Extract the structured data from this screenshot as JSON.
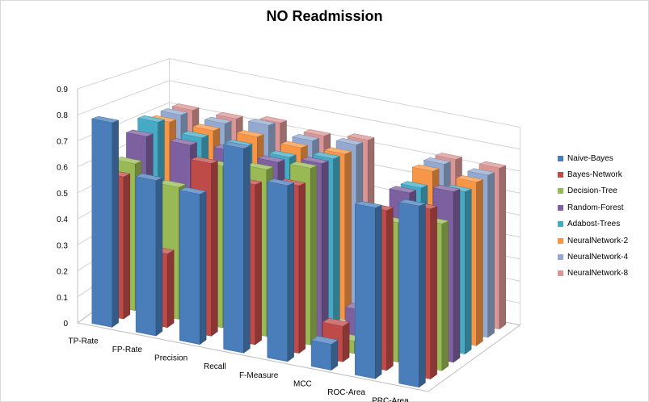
{
  "chart_data": {
    "type": "bar",
    "title": "NO Readmission",
    "categories": [
      "TP-Rate",
      "FP-Rate",
      "Precision",
      "Recall",
      "F-Measure",
      "MCC",
      "ROC-Area",
      "PRC-Area"
    ],
    "ylim": [
      0,
      0.9
    ],
    "yticks": [
      "0",
      "0.1",
      "0.2",
      "0.3",
      "0.4",
      "0.5",
      "0.6",
      "0.7",
      "0.8",
      "0.9"
    ],
    "legend_position": "right",
    "grid": true,
    "series": [
      {
        "name": "Naive-Bayes",
        "color": "#4a7ebb",
        "values": [
          0.79,
          0.6,
          0.58,
          0.79,
          0.68,
          0.1,
          0.66,
          0.7
        ]
      },
      {
        "name": "Bayes-Network",
        "color": "#be4b48",
        "values": [
          0.56,
          0.29,
          0.68,
          0.63,
          0.66,
          0.14,
          0.63,
          0.67
        ]
      },
      {
        "name": "Decision-Tree",
        "color": "#98b954",
        "values": [
          0.59,
          0.53,
          0.65,
          0.67,
          0.71,
          0.05,
          0.56,
          0.59
        ]
      },
      {
        "name": "Random-Forest",
        "color": "#7d60a0",
        "values": [
          0.68,
          0.68,
          0.69,
          0.68,
          0.71,
          0.14,
          0.66,
          0.7
        ]
      },
      {
        "name": "Adabost-Trees",
        "color": "#46aac5",
        "values": [
          0.72,
          0.69,
          0.69,
          0.68,
          0.71,
          0.09,
          0.66,
          0.68
        ]
      },
      {
        "name": "NeuralNetwork-2",
        "color": "#f79646",
        "values": [
          0.7,
          0.7,
          0.71,
          0.7,
          0.71,
          0.1,
          0.71,
          0.7
        ]
      },
      {
        "name": "NeuralNetwork-4",
        "color": "#93a9cf",
        "values": [
          0.71,
          0.71,
          0.74,
          0.71,
          0.73,
          0.11,
          0.72,
          0.71
        ]
      },
      {
        "name": "NeuralNetwork-8",
        "color": "#d99694",
        "values": [
          0.71,
          0.71,
          0.73,
          0.71,
          0.73,
          0.13,
          0.72,
          0.72
        ]
      }
    ]
  }
}
